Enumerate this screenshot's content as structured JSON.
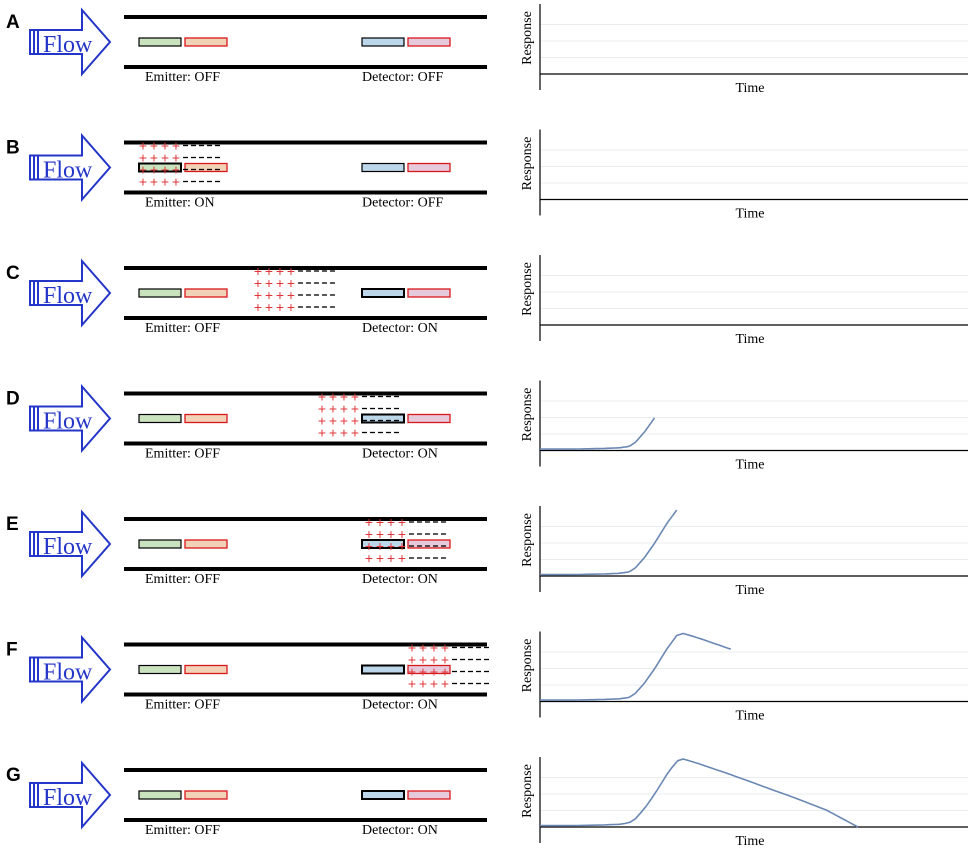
{
  "flow_label": "Flow",
  "axis": {
    "ylabel": "Response",
    "xlabel": "Time"
  },
  "colors": {
    "arrow": "#2436c8",
    "pipe": "#000000",
    "emitter_left_fill": "#c9e3bf",
    "emitter_right_fill": "#f2d2b6",
    "detector_left_fill": "#bcd6ea",
    "detector_right_fill": "#e6cadb",
    "active_outline": "#000000",
    "inactive_outline_right": "#d9181c",
    "plus": "#e0363a",
    "dash": "#000000",
    "curve": "#6b88b4",
    "grid": "#e9ecef",
    "panel_letter": "#000000"
  },
  "panels": [
    {
      "letter": "A",
      "emitter": "Emitter: OFF",
      "detector": "Detector: OFF",
      "cloud": null,
      "progress": 0.0
    },
    {
      "letter": "B",
      "emitter": "Emitter: ON",
      "detector": "Detector: OFF",
      "cloud": "emitter",
      "progress": 0.0
    },
    {
      "letter": "C",
      "emitter": "Emitter: OFF",
      "detector": "Detector: ON",
      "cloud": "middle",
      "progress": 0.0
    },
    {
      "letter": "D",
      "emitter": "Emitter: OFF",
      "detector": "Detector: ON",
      "cloud": "detector-in",
      "progress": 0.36
    },
    {
      "letter": "E",
      "emitter": "Emitter: OFF",
      "detector": "Detector: ON",
      "cloud": "detector",
      "progress": 0.43
    },
    {
      "letter": "F",
      "emitter": "Emitter: OFF",
      "detector": "Detector: ON",
      "cloud": "detector-out",
      "progress": 0.6
    },
    {
      "letter": "G",
      "emitter": "Emitter: OFF",
      "detector": "Detector: ON",
      "cloud": null,
      "progress": 1.0
    }
  ],
  "chart_data": {
    "type": "line",
    "title": "",
    "xlabel": "Time",
    "ylabel": "Response",
    "xlim": [
      0,
      1
    ],
    "ylim": [
      0,
      1
    ],
    "grid": true,
    "series": [
      {
        "name": "response",
        "x": [
          0.0,
          0.1,
          0.2,
          0.25,
          0.28,
          0.3,
          0.33,
          0.36,
          0.4,
          0.43,
          0.45,
          0.48,
          0.5,
          0.55,
          0.6,
          0.7,
          0.8,
          0.9,
          1.0
        ],
        "y": [
          0.02,
          0.02,
          0.03,
          0.04,
          0.06,
          0.12,
          0.28,
          0.48,
          0.78,
          0.97,
          1.0,
          0.96,
          0.93,
          0.85,
          0.77,
          0.6,
          0.43,
          0.25,
          0.0
        ]
      }
    ]
  }
}
